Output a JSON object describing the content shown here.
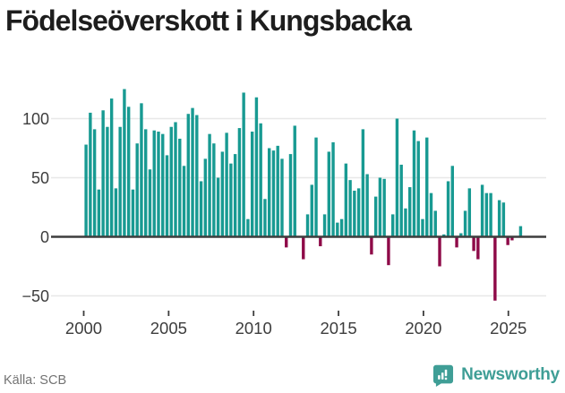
{
  "header": {
    "title": "Födelseöverskott i Kungsbacka"
  },
  "footer": {
    "source": "Källa: SCB",
    "brand": "Newsworthy"
  },
  "colors": {
    "positive_bar": "#189a92",
    "negative_bar": "#8e0a48",
    "axis": "#3d3d3d",
    "grid": "#e8e8e8",
    "title_text": "#1d1d1d",
    "tick_text": "#3d3d3d",
    "source_text": "#737373",
    "brand_teal": "#3f9e96"
  },
  "chart_data": {
    "type": "bar",
    "title": "Födelseöverskott i Kungsbacka",
    "xlabel": "",
    "ylabel": "",
    "frequency": "quarterly",
    "start": "2000-Q1",
    "end": "2025-Q3",
    "grid": true,
    "legend": false,
    "ylim": [
      -62,
      132
    ],
    "y_ticks": [
      100,
      50,
      0,
      -50
    ],
    "y_tick_labels": [
      "100",
      "50",
      "0",
      "−50"
    ],
    "x_ticks": [
      2000,
      2005,
      2010,
      2015,
      2020,
      2025
    ],
    "x_tick_labels": [
      "2000",
      "2005",
      "2010",
      "2015",
      "2020",
      "2025"
    ],
    "values": [
      78,
      105,
      91,
      40,
      107,
      93,
      117,
      41,
      93,
      125,
      110,
      40,
      79,
      113,
      91,
      57,
      90,
      89,
      87,
      69,
      93,
      97,
      83,
      60,
      104,
      109,
      103,
      47,
      66,
      87,
      79,
      50,
      72,
      88,
      62,
      70,
      92,
      122,
      15,
      89,
      118,
      96,
      32,
      75,
      73,
      77,
      66,
      -9,
      70,
      94,
      0,
      -19,
      19,
      44,
      84,
      -8,
      19,
      72,
      80,
      12,
      15,
      62,
      48,
      39,
      41,
      91,
      53,
      -15,
      34,
      50,
      49,
      -24,
      19,
      100,
      61,
      24,
      42,
      90,
      81,
      15,
      84,
      37,
      22,
      -25,
      2,
      47,
      60,
      -9,
      3,
      22,
      41,
      -12,
      -19,
      44,
      37,
      37,
      -54,
      31,
      29,
      -7,
      -3,
      0,
      9
    ]
  }
}
